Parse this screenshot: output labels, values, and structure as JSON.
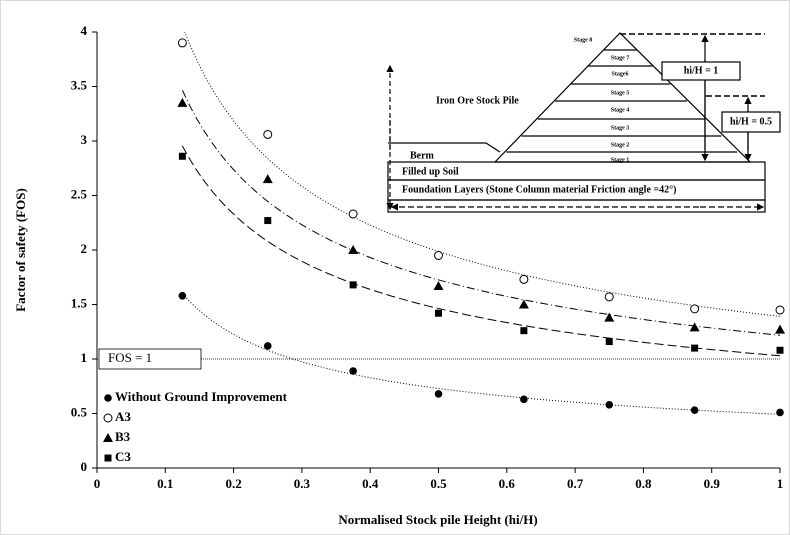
{
  "chart_data": {
    "type": "scatter",
    "x_label": "Normalised Stock pile Height (hi/H)",
    "y_label": "Factor of safety (FOS)",
    "xlim": [
      0,
      1
    ],
    "xticks": [
      0,
      0.1,
      0.2,
      0.3,
      0.4,
      0.5,
      0.6,
      0.7,
      0.8,
      0.9,
      1
    ],
    "ylim": [
      0,
      4
    ],
    "yticks": [
      0,
      0.5,
      1,
      1.5,
      2,
      2.5,
      3,
      3.5,
      4
    ],
    "trendline": "power",
    "x": [
      0.125,
      0.25,
      0.375,
      0.5,
      0.625,
      0.75,
      0.875,
      1
    ],
    "series": [
      {
        "name": "Without Ground Improvement",
        "color": "#000000",
        "marker": "filled-circle",
        "line_style": "dotted",
        "values": [
          1.58,
          1.12,
          0.89,
          0.68,
          0.63,
          0.58,
          0.53,
          0.51
        ]
      },
      {
        "name": "A3",
        "color": "#000000",
        "marker": "open-circle",
        "line_style": "dotted",
        "values": [
          3.9,
          3.06,
          2.33,
          1.95,
          1.73,
          1.57,
          1.46,
          1.45
        ]
      },
      {
        "name": "B3",
        "color": "#000000",
        "marker": "triangle",
        "line_style": "dash-dot",
        "values": [
          3.35,
          2.65,
          2.0,
          1.67,
          1.5,
          1.38,
          1.29,
          1.27
        ]
      },
      {
        "name": "C3",
        "color": "#000000",
        "marker": "square",
        "line_style": "dashed",
        "values": [
          2.86,
          2.27,
          1.68,
          1.42,
          1.26,
          1.16,
          1.1,
          1.08
        ]
      }
    ],
    "reference_line": {
      "value": 1,
      "label": "FOS = 1"
    },
    "inset": {
      "stages": [
        "Stage 1",
        "Stage 2",
        "Stage 3",
        "Stage 4",
        "Stage 5",
        "Stage6",
        "Stage 7",
        "Stage 8"
      ],
      "pile_label": "Iron Ore Stock Pile",
      "berm_label": "Berm",
      "fill_label": "Filled up Soil",
      "foundation_label": "Foundation Layers (Stone Column material Friction angle =42°)",
      "h1_label": "hi/H = 1",
      "h05_label": "hi/H = 0.5"
    }
  }
}
